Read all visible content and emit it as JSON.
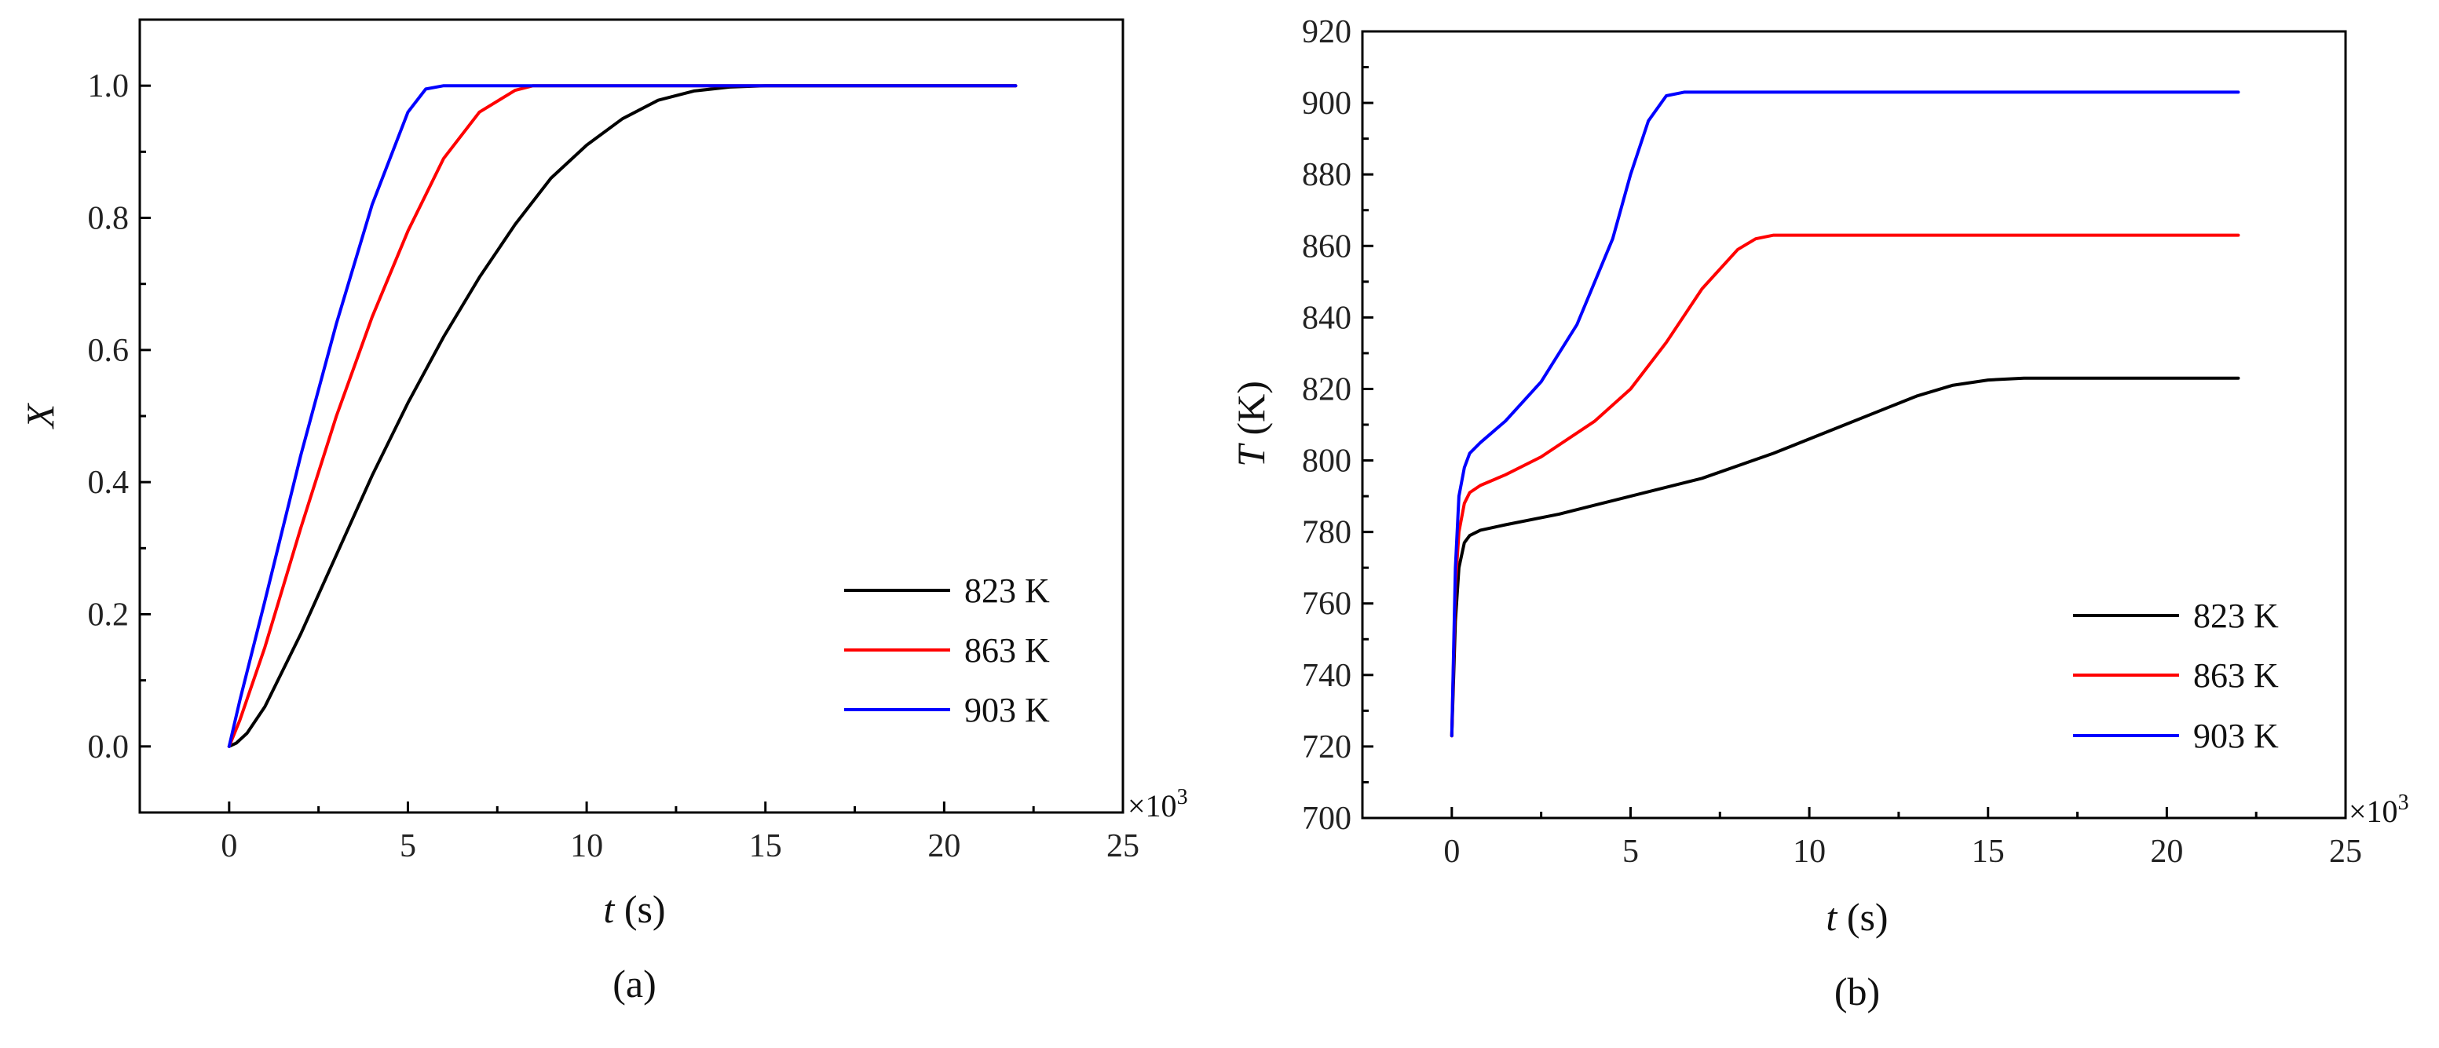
{
  "chart_data": [
    {
      "panel": "a",
      "type": "line",
      "caption": "(a)",
      "xlabel_var": "t",
      "xlabel_unit": " (s)",
      "ylabel_var": "X",
      "ylabel_unit": "",
      "x_multiplier_base": "×10",
      "x_multiplier_exp": "3",
      "xlim": [
        -2.5,
        25
      ],
      "ylim": [
        -0.1,
        1.1
      ],
      "xticks": [
        0,
        5,
        10,
        15,
        20,
        25
      ],
      "xtick_labels": [
        "0",
        "5",
        "10",
        "15",
        "20",
        "25"
      ],
      "yticks": [
        0,
        0.2,
        0.4,
        0.6,
        0.8,
        1.0
      ],
      "ytick_labels": [
        "0.0",
        "0.2",
        "0.4",
        "0.6",
        "0.8",
        "1.0"
      ],
      "legend_position": "lower-right",
      "series": [
        {
          "name": "823 K",
          "color": "#000000",
          "x": [
            0,
            0.2,
            0.5,
            1,
            2,
            3,
            4,
            5,
            6,
            7,
            8,
            9,
            10,
            11,
            12,
            13,
            14,
            15,
            16,
            18,
            20,
            22
          ],
          "y": [
            0,
            0.005,
            0.02,
            0.06,
            0.17,
            0.29,
            0.41,
            0.52,
            0.62,
            0.71,
            0.79,
            0.86,
            0.91,
            0.95,
            0.978,
            0.992,
            0.998,
            1.0,
            1.0,
            1.0,
            1.0,
            1.0
          ]
        },
        {
          "name": "863 K",
          "color": "#ff0000",
          "x": [
            0,
            0.3,
            1,
            2,
            3,
            4,
            5,
            6,
            7,
            8,
            8.5,
            9,
            10,
            12,
            15,
            18,
            22
          ],
          "y": [
            0,
            0.04,
            0.15,
            0.33,
            0.5,
            0.65,
            0.78,
            0.89,
            0.96,
            0.993,
            1.0,
            1.0,
            1.0,
            1.0,
            1.0,
            1.0,
            1.0
          ]
        },
        {
          "name": "903 K",
          "color": "#0000ff",
          "x": [
            0,
            0.3,
            1,
            2,
            3,
            4,
            5,
            5.5,
            6,
            7,
            10,
            15,
            22
          ],
          "y": [
            0,
            0.07,
            0.22,
            0.44,
            0.64,
            0.82,
            0.96,
            0.995,
            1.0,
            1.0,
            1.0,
            1.0,
            1.0
          ]
        }
      ]
    },
    {
      "panel": "b",
      "type": "line",
      "caption": "(b)",
      "xlabel_var": "t",
      "xlabel_unit": " (s)",
      "ylabel_var": "T",
      "ylabel_unit": " (K)",
      "x_multiplier_base": "×10",
      "x_multiplier_exp": "3",
      "xlim": [
        -2.5,
        25
      ],
      "ylim": [
        700,
        920
      ],
      "xticks": [
        0,
        5,
        10,
        15,
        20,
        25
      ],
      "xtick_labels": [
        "0",
        "5",
        "10",
        "15",
        "20",
        "25"
      ],
      "yticks": [
        700,
        720,
        740,
        760,
        780,
        800,
        820,
        840,
        860,
        880,
        900,
        920
      ],
      "ytick_labels": [
        "700",
        "720",
        "740",
        "760",
        "780",
        "800",
        "820",
        "840",
        "860",
        "880",
        "900",
        "920"
      ],
      "legend_position": "lower-right",
      "series": [
        {
          "name": "823 K",
          "color": "#000000",
          "x": [
            0,
            0.1,
            0.2,
            0.35,
            0.5,
            0.8,
            1.5,
            3,
            5,
            7,
            9,
            11,
            13,
            14,
            15,
            16,
            17,
            18,
            20,
            22
          ],
          "y": [
            723,
            755,
            770,
            777,
            779,
            780.5,
            782,
            785,
            790,
            795,
            802,
            810,
            818,
            821,
            822.5,
            823,
            823,
            823,
            823,
            823
          ]
        },
        {
          "name": "863 K",
          "color": "#ff0000",
          "x": [
            0,
            0.1,
            0.2,
            0.35,
            0.5,
            0.8,
            1.5,
            2.5,
            4,
            5,
            6,
            7,
            8,
            8.5,
            9,
            9.5,
            10,
            12,
            15,
            22
          ],
          "y": [
            723,
            765,
            780,
            788,
            791,
            793,
            796,
            801,
            811,
            820,
            833,
            848,
            859,
            862,
            863,
            863,
            863,
            863,
            863,
            863
          ]
        },
        {
          "name": "903 K",
          "color": "#0000ff",
          "x": [
            0,
            0.1,
            0.2,
            0.35,
            0.5,
            0.8,
            1.5,
            2.5,
            3.5,
            4.5,
            5,
            5.5,
            6,
            6.5,
            7,
            10,
            15,
            22
          ],
          "y": [
            723,
            770,
            790,
            798,
            802,
            805,
            811,
            822,
            838,
            862,
            880,
            895,
            902,
            903,
            903,
            903,
            903,
            903
          ]
        }
      ]
    }
  ]
}
